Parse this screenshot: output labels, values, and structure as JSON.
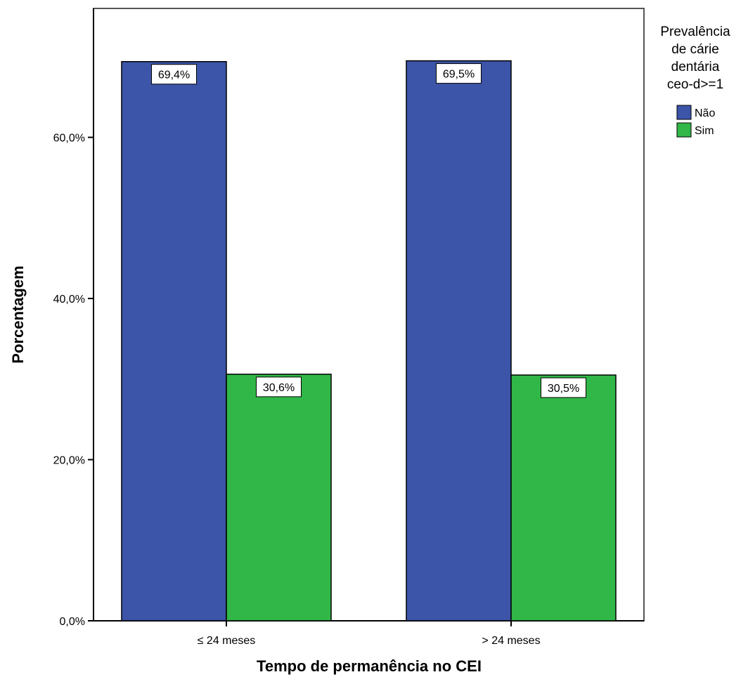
{
  "chart_data": {
    "type": "bar",
    "title": "",
    "xlabel": "Tempo de permanência no CEI",
    "ylabel": "Porcentagem",
    "categories": [
      "≤ 24 meses",
      "> 24 meses"
    ],
    "series": [
      {
        "name": "Não",
        "values": [
          69.4,
          69.5
        ],
        "labels": [
          "69,4%",
          "69,5%"
        ],
        "color": "#3c55a8"
      },
      {
        "name": "Sim",
        "values": [
          30.6,
          30.5
        ],
        "labels": [
          "30,6%",
          "30,5%"
        ],
        "color": "#31b748"
      }
    ],
    "ylim": [
      0,
      76
    ],
    "yticks": [
      0,
      20,
      40,
      60
    ],
    "ytick_labels": [
      "0,0%",
      "20,0%",
      "40,0%",
      "60,0%"
    ],
    "grid": false,
    "legend": {
      "title_lines": [
        "Prevalência",
        "de cárie",
        "dentária",
        "ceo-d>=1"
      ],
      "placement": "right"
    }
  }
}
